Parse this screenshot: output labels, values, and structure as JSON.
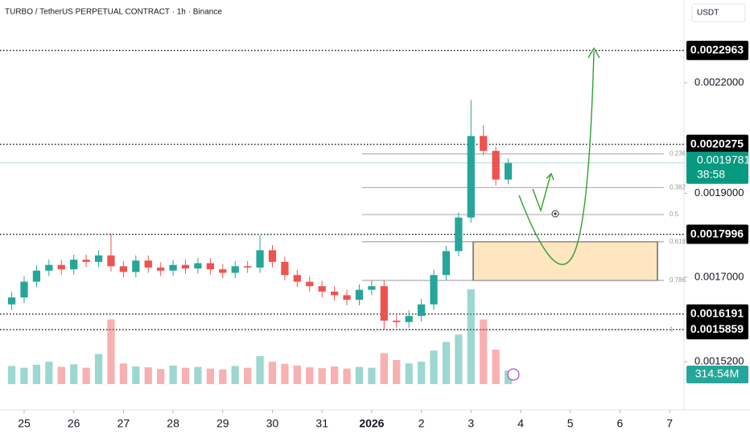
{
  "chart_data": {
    "type": "candlestick",
    "title": "TURBO / TetherUS PERPETUAL CONTRACT · 1h · Binance",
    "currency": "USDT",
    "up_color": "#26a69a",
    "down_color": "#ef5350",
    "x": [
      -0.25,
      0,
      0.25,
      0.5,
      0.75,
      1,
      1.25,
      1.5,
      1.75,
      2,
      2.25,
      2.5,
      2.75,
      3,
      3.25,
      3.5,
      3.75,
      4,
      4.25,
      4.5,
      4.75,
      5,
      5.25,
      5.5,
      5.75,
      6,
      6.25,
      6.5,
      6.75,
      7,
      7.25,
      7.5,
      7.75,
      8,
      8.25,
      8.5,
      8.75,
      9,
      9.25,
      9.5,
      9.75
    ],
    "open": [
      0.00164,
      0.001655,
      0.00169,
      0.001715,
      0.001728,
      0.001718,
      0.00174,
      0.001735,
      0.00175,
      0.001725,
      0.001712,
      0.001738,
      0.001722,
      0.001715,
      0.001728,
      0.00172,
      0.001732,
      0.001718,
      0.00171,
      0.001725,
      0.001722,
      0.001762,
      0.001735,
      0.001705,
      0.00169,
      0.00168,
      0.001668,
      0.00166,
      0.00165,
      0.001672,
      0.00168,
      0.001605,
      0.001602,
      0.001615,
      0.00164,
      0.001705,
      0.00176,
      0.00184,
      0.00205,
      0.00201,
      0.001935
    ],
    "high": [
      0.001668,
      0.001702,
      0.001727,
      0.00174,
      0.00174,
      0.001752,
      0.001752,
      0.001762,
      0.0018,
      0.001737,
      0.00175,
      0.00175,
      0.001734,
      0.00174,
      0.00174,
      0.001744,
      0.001744,
      0.00173,
      0.001737,
      0.001737,
      0.001797,
      0.001774,
      0.001747,
      0.001717,
      0.001702,
      0.001692,
      0.00168,
      0.001672,
      0.001684,
      0.001692,
      0.001692,
      0.001617,
      0.001627,
      0.001652,
      0.001717,
      0.001772,
      0.001852,
      0.00215,
      0.00208,
      0.002022,
      0.00199
    ],
    "low": [
      0.001628,
      0.001643,
      0.001678,
      0.001703,
      0.001706,
      0.001706,
      0.001723,
      0.001723,
      0.001713,
      0.0017,
      0.0017,
      0.00171,
      0.001703,
      0.001703,
      0.001708,
      0.001708,
      0.001706,
      0.001698,
      0.001698,
      0.00171,
      0.00171,
      0.001723,
      0.001693,
      0.001678,
      0.001668,
      0.001656,
      0.001648,
      0.001638,
      0.001638,
      0.00166,
      0.001586,
      0.00159,
      0.00159,
      0.001603,
      0.001628,
      0.001693,
      0.001748,
      0.001828,
      0.001998,
      0.00192,
      0.001923
    ],
    "close": [
      0.001655,
      0.00169,
      0.001715,
      0.001728,
      0.001718,
      0.00174,
      0.001735,
      0.00175,
      0.001725,
      0.001712,
      0.001738,
      0.001722,
      0.001715,
      0.001728,
      0.00172,
      0.001732,
      0.001718,
      0.00171,
      0.001725,
      0.001722,
      0.001762,
      0.001735,
      0.001705,
      0.00169,
      0.00168,
      0.001668,
      0.00166,
      0.00165,
      0.001672,
      0.00168,
      0.001605,
      0.001602,
      0.001615,
      0.00164,
      0.001705,
      0.00176,
      0.00184,
      0.00205,
      0.00201,
      0.001935,
      0.001978
    ],
    "volume": [
      420,
      380,
      450,
      520,
      400,
      460,
      380,
      700,
      1500,
      480,
      410,
      390,
      350,
      430,
      380,
      400,
      360,
      340,
      420,
      380,
      650,
      520,
      470,
      430,
      390,
      370,
      410,
      360,
      400,
      380,
      720,
      560,
      480,
      520,
      780,
      980,
      1150,
      2200,
      1500,
      800,
      314.54
    ],
    "volume_label": "314.54M",
    "xlim": [
      -0.486,
      13.29
    ],
    "xticks": [
      {
        "value": 0,
        "label": "25"
      },
      {
        "value": 1,
        "label": "26"
      },
      {
        "value": 2,
        "label": "27"
      },
      {
        "value": 3,
        "label": "28"
      },
      {
        "value": 4,
        "label": "29"
      },
      {
        "value": 5,
        "label": "30"
      },
      {
        "value": 6,
        "label": "31"
      },
      {
        "value": 7,
        "label": "2026"
      },
      {
        "value": 8,
        "label": "2"
      },
      {
        "value": 9,
        "label": "3"
      },
      {
        "value": 10,
        "label": "4"
      },
      {
        "value": 11,
        "label": "5"
      },
      {
        "value": 12,
        "label": "6"
      },
      {
        "value": 13,
        "label": "7"
      }
    ],
    "ylim": [
      0.001426,
      0.002455
    ],
    "log_scale": true,
    "yticks": [
      {
        "value": 0.0022,
        "label": "0.0022000"
      },
      {
        "value": 0.0019,
        "label": "0.0019000"
      },
      {
        "value": 0.0017,
        "label": "0.0017000"
      },
      {
        "value": 0.00152,
        "label": "0.0015200"
      }
    ],
    "levels": [
      0.0022963,
      0.0020275,
      0.0017996,
      0.0016191,
      0.0015859
    ],
    "current_price": 0.0019781,
    "countdown": "38:58",
    "fib": {
      "high": 0.0021517,
      "low": 0.0015859,
      "levels": [
        0.236,
        0.382,
        0.5,
        0.618,
        0.786,
        1
      ]
    }
  }
}
